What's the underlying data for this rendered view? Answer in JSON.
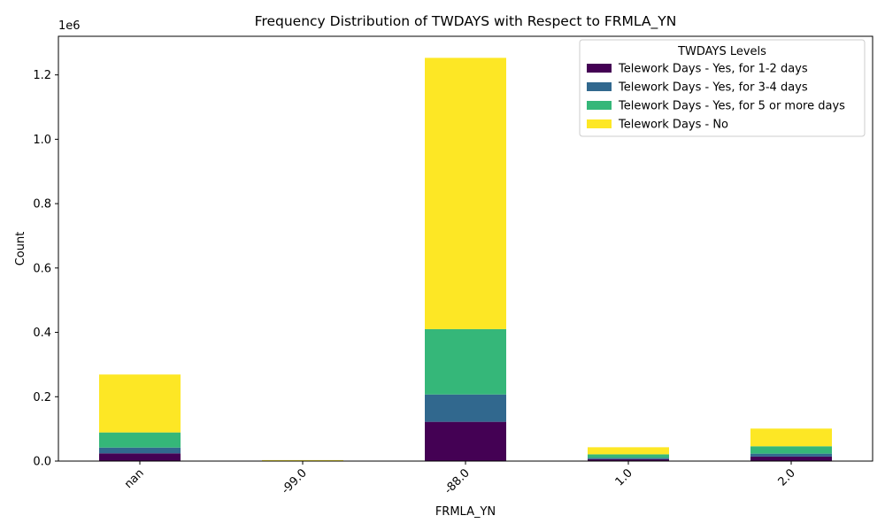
{
  "chart_data": {
    "type": "bar",
    "stacked": true,
    "title": "Frequency Distribution of TWDAYS with Respect to FRMLA_YN",
    "xlabel": "FRMLA_YN",
    "ylabel": "Count",
    "y_offset_label": "1e6",
    "ylim": [
      0,
      1.32
    ],
    "yticks": [
      "0.0",
      "0.2",
      "0.4",
      "0.6",
      "0.8",
      "1.0",
      "1.2"
    ],
    "categories": [
      "nan",
      "-99.0",
      "-88.0",
      "1.0",
      "2.0"
    ],
    "legend_title": "TWDAYS Levels",
    "legend_position": "top-right",
    "grid": false,
    "series": [
      {
        "name": "Telework Days - Yes, for 1-2 days",
        "color": "#440154",
        "values": [
          0.024,
          0.0003,
          0.122,
          0.006,
          0.014
        ]
      },
      {
        "name": "Telework Days - Yes, for 3-4 days",
        "color": "#31688e",
        "values": [
          0.018,
          0.0002,
          0.085,
          0.004,
          0.009
        ]
      },
      {
        "name": "Telework Days - Yes, for 5 or more days",
        "color": "#35b779",
        "values": [
          0.047,
          0.0005,
          0.203,
          0.011,
          0.023
        ]
      },
      {
        "name": "Telework Days - No",
        "color": "#fde725",
        "values": [
          0.18,
          0.002,
          0.843,
          0.022,
          0.055
        ]
      }
    ]
  }
}
